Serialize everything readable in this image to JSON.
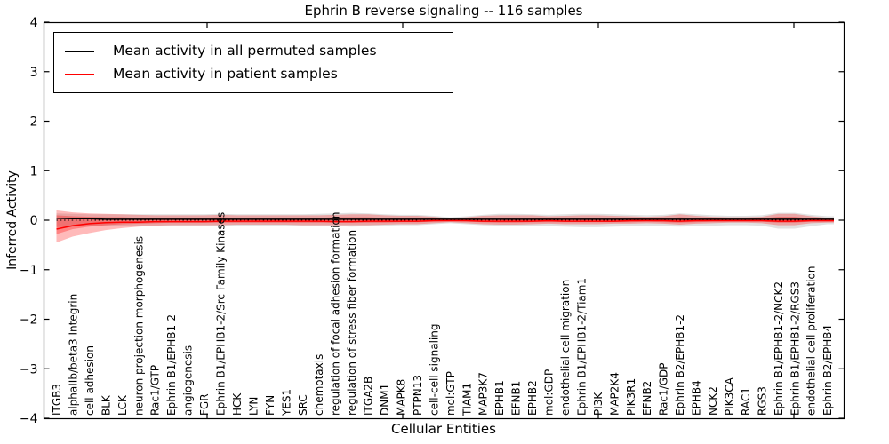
{
  "title": "Ephrin B reverse signaling -- 116 samples",
  "axes": {
    "ylabel": "Inferred Activity",
    "xlabel": "Cellular Entities",
    "y_tick_labels": [
      "4",
      "3",
      "2",
      "1",
      "0",
      "−1",
      "−2",
      "−3",
      "−4"
    ],
    "y_tick_values": [
      4,
      3,
      2,
      1,
      0,
      -1,
      -2,
      -3,
      -4
    ]
  },
  "legend": {
    "items": [
      {
        "label": "Mean activity in all permuted samples",
        "color": "#000000"
      },
      {
        "label": "Mean activity in patient samples",
        "color": "#ff0000"
      }
    ]
  },
  "colors": {
    "permuted_band": "#c8c8c8",
    "patient_band": "#ff0000",
    "permuted_line": "#000000",
    "patient_line": "#ff0000",
    "zero_line": "#000000"
  },
  "chart_data": {
    "type": "area",
    "title": "Ephrin B reverse signaling -- 116 samples",
    "xlabel": "Cellular Entities",
    "ylabel": "Inferred Activity",
    "ylim": [
      -4,
      4
    ],
    "legend_position": "upper left",
    "grid": false,
    "categories": [
      "ITGB3",
      "alphaIIb/beta3 Integrin",
      "cell adhesion",
      "BLK",
      "LCK",
      "neuron projection morphogenesis",
      "Rac1/GTP",
      "Ephrin B1/EPHB1-2",
      "angiogenesis",
      "FGR",
      "Ephrin B1/EPHB1-2/Src Family Kinases",
      "HCK",
      "LYN",
      "FYN",
      "YES1",
      "SRC",
      "chemotaxis",
      "regulation of focal adhesion formation",
      "regulation of stress fiber formation",
      "ITGA2B",
      "DNM1",
      "MAPK8",
      "PTPN13",
      "cell-cell signaling",
      "mol:GTP",
      "TIAM1",
      "MAP3K7",
      "EPHB1",
      "EFNB1",
      "EPHB2",
      "mol:GDP",
      "endothelial cell migration",
      "Ephrin B1/EPHB1-2/Tiam1",
      "PI3K",
      "MAP2K4",
      "PIK3R1",
      "EFNB2",
      "Rac1/GDP",
      "Ephrin B2/EPHB1-2",
      "EPHB4",
      "NCK2",
      "PIK3CA",
      "RAC1",
      "RGS3",
      "Ephrin B1/EPHB1-2/NCK2",
      "Ephrin B1/EPHB1-2/RGS3",
      "endothelial cell proliferation",
      "Ephrin B2/EPHB4"
    ],
    "series": [
      {
        "name": "Mean activity in all permuted samples",
        "color": "#000000",
        "style": "solid",
        "values": [
          0.04,
          0.03,
          0.03,
          0.02,
          0.02,
          0.02,
          0.02,
          0.02,
          0.02,
          0.02,
          0.02,
          0.02,
          0.02,
          0.02,
          0.02,
          0.02,
          0.02,
          0.02,
          0.02,
          0.02,
          0.02,
          0.02,
          0.02,
          0.02,
          0.02,
          0.02,
          0.02,
          0.02,
          0.02,
          0.02,
          0.02,
          0.02,
          0.02,
          0.02,
          0.02,
          0.02,
          0.02,
          0.02,
          0.02,
          0.02,
          0.02,
          0.02,
          0.02,
          0.02,
          0.02,
          0.02,
          0.02,
          0.02
        ]
      },
      {
        "name": "Mean activity in patient samples",
        "color": "#ff0000",
        "style": "solid",
        "values": [
          -0.18,
          -0.11,
          -0.07,
          -0.05,
          -0.04,
          -0.04,
          -0.03,
          -0.03,
          -0.03,
          -0.03,
          -0.02,
          -0.02,
          -0.02,
          -0.02,
          -0.02,
          -0.02,
          -0.02,
          -0.03,
          -0.03,
          -0.02,
          -0.02,
          -0.02,
          -0.02,
          -0.01,
          -0.01,
          -0.01,
          -0.02,
          -0.02,
          -0.02,
          -0.02,
          -0.01,
          -0.02,
          -0.02,
          -0.02,
          -0.02,
          -0.01,
          -0.01,
          -0.01,
          -0.02,
          -0.01,
          -0.01,
          -0.01,
          -0.01,
          -0.01,
          -0.02,
          -0.02,
          -0.01,
          -0.01
        ]
      },
      {
        "name": "zero reference",
        "color": "#000000",
        "style": "dotted",
        "constant": 0
      }
    ],
    "bands": [
      {
        "name": "permuted samples spread",
        "fill": "#c8c8c8",
        "opacity": 0.55,
        "upper": [
          0.14,
          0.13,
          0.12,
          0.12,
          0.12,
          0.12,
          0.12,
          0.12,
          0.12,
          0.12,
          0.13,
          0.12,
          0.12,
          0.12,
          0.12,
          0.12,
          0.13,
          0.14,
          0.15,
          0.14,
          0.12,
          0.11,
          0.11,
          0.09,
          0.06,
          0.08,
          0.11,
          0.13,
          0.13,
          0.12,
          0.11,
          0.12,
          0.13,
          0.13,
          0.12,
          0.11,
          0.1,
          0.11,
          0.14,
          0.12,
          0.1,
          0.09,
          0.09,
          0.1,
          0.15,
          0.15,
          0.11,
          0.08
        ],
        "lower": [
          -0.14,
          -0.13,
          -0.12,
          -0.12,
          -0.12,
          -0.12,
          -0.11,
          -0.11,
          -0.11,
          -0.11,
          -0.12,
          -0.11,
          -0.11,
          -0.11,
          -0.11,
          -0.12,
          -0.12,
          -0.12,
          -0.13,
          -0.12,
          -0.11,
          -0.1,
          -0.1,
          -0.08,
          -0.06,
          -0.08,
          -0.1,
          -0.11,
          -0.11,
          -0.11,
          -0.12,
          -0.13,
          -0.14,
          -0.14,
          -0.13,
          -0.12,
          -0.11,
          -0.12,
          -0.13,
          -0.12,
          -0.11,
          -0.1,
          -0.1,
          -0.11,
          -0.17,
          -0.17,
          -0.12,
          -0.08
        ]
      },
      {
        "name": "patient samples spread (outer)",
        "fill": "#ff0000",
        "opacity": 0.27,
        "upper": [
          0.2,
          0.16,
          0.14,
          0.13,
          0.12,
          0.11,
          0.1,
          0.1,
          0.1,
          0.1,
          0.11,
          0.1,
          0.1,
          0.1,
          0.1,
          0.1,
          0.1,
          0.11,
          0.12,
          0.12,
          0.1,
          0.09,
          0.09,
          0.07,
          0.04,
          0.06,
          0.09,
          0.1,
          0.1,
          0.1,
          0.08,
          0.09,
          0.1,
          0.1,
          0.09,
          0.08,
          0.07,
          0.08,
          0.12,
          0.09,
          0.07,
          0.06,
          0.06,
          0.07,
          0.13,
          0.13,
          0.08,
          0.05
        ],
        "lower": [
          -0.45,
          -0.33,
          -0.26,
          -0.2,
          -0.16,
          -0.13,
          -0.11,
          -0.1,
          -0.1,
          -0.1,
          -0.1,
          -0.09,
          -0.09,
          -0.09,
          -0.09,
          -0.1,
          -0.1,
          -0.1,
          -0.1,
          -0.1,
          -0.09,
          -0.08,
          -0.08,
          -0.06,
          -0.04,
          -0.06,
          -0.08,
          -0.09,
          -0.09,
          -0.08,
          -0.07,
          -0.08,
          -0.08,
          -0.08,
          -0.07,
          -0.07,
          -0.06,
          -0.07,
          -0.09,
          -0.07,
          -0.06,
          -0.05,
          -0.05,
          -0.06,
          -0.1,
          -0.1,
          -0.06,
          -0.05
        ]
      },
      {
        "name": "patient samples spread (inner)",
        "fill": "#ff0000",
        "opacity": 0.3,
        "upper": [
          0.1,
          0.08,
          0.07,
          0.06,
          0.06,
          0.05,
          0.05,
          0.05,
          0.05,
          0.05,
          0.06,
          0.05,
          0.05,
          0.05,
          0.05,
          0.05,
          0.05,
          0.06,
          0.06,
          0.06,
          0.05,
          0.05,
          0.05,
          0.04,
          0.02,
          0.03,
          0.05,
          0.05,
          0.05,
          0.05,
          0.04,
          0.05,
          0.05,
          0.05,
          0.05,
          0.04,
          0.04,
          0.04,
          0.06,
          0.05,
          0.04,
          0.03,
          0.03,
          0.04,
          0.07,
          0.07,
          0.04,
          0.03
        ],
        "lower": [
          -0.28,
          -0.18,
          -0.13,
          -0.1,
          -0.08,
          -0.07,
          -0.06,
          -0.05,
          -0.05,
          -0.05,
          -0.05,
          -0.05,
          -0.05,
          -0.05,
          -0.05,
          -0.05,
          -0.05,
          -0.05,
          -0.05,
          -0.05,
          -0.05,
          -0.04,
          -0.04,
          -0.03,
          -0.02,
          -0.03,
          -0.04,
          -0.05,
          -0.05,
          -0.04,
          -0.04,
          -0.04,
          -0.04,
          -0.04,
          -0.04,
          -0.04,
          -0.03,
          -0.04,
          -0.05,
          -0.04,
          -0.03,
          -0.03,
          -0.03,
          -0.03,
          -0.05,
          -0.05,
          -0.03,
          -0.03
        ]
      }
    ]
  }
}
